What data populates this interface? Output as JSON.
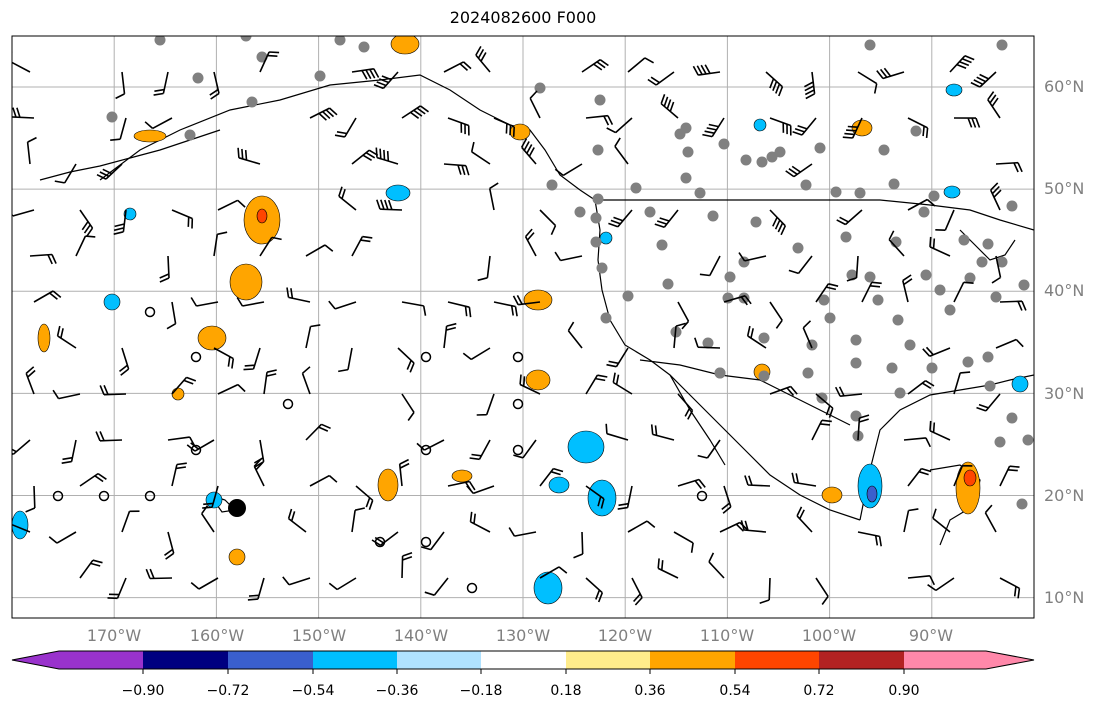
{
  "title": "2024082600 F000",
  "map": {
    "lat_ticks": [
      "60°N",
      "50°N",
      "40°N",
      "30°N",
      "20°N",
      "10°N"
    ],
    "lon_ticks": [
      "170°W",
      "160°W",
      "150°W",
      "140°W",
      "130°W",
      "120°W",
      "110°W",
      "100°W",
      "90°W"
    ],
    "extent": {
      "lon": [
        -180,
        -80
      ],
      "lat": [
        8,
        65
      ]
    }
  },
  "colorbar": {
    "tick_labels": [
      "−0.90",
      "−0.72",
      "−0.54",
      "−0.36",
      "−0.18",
      "0.18",
      "0.36",
      "0.54",
      "0.72",
      "0.90"
    ],
    "colors": [
      "#9932cc",
      "#000080",
      "#3a5fcd",
      "#00bfff",
      "#b0e2ff",
      "#ffffff",
      "#ffec8b",
      "#ffa500",
      "#ff4500",
      "#b22222",
      "#ff88aa"
    ]
  }
}
